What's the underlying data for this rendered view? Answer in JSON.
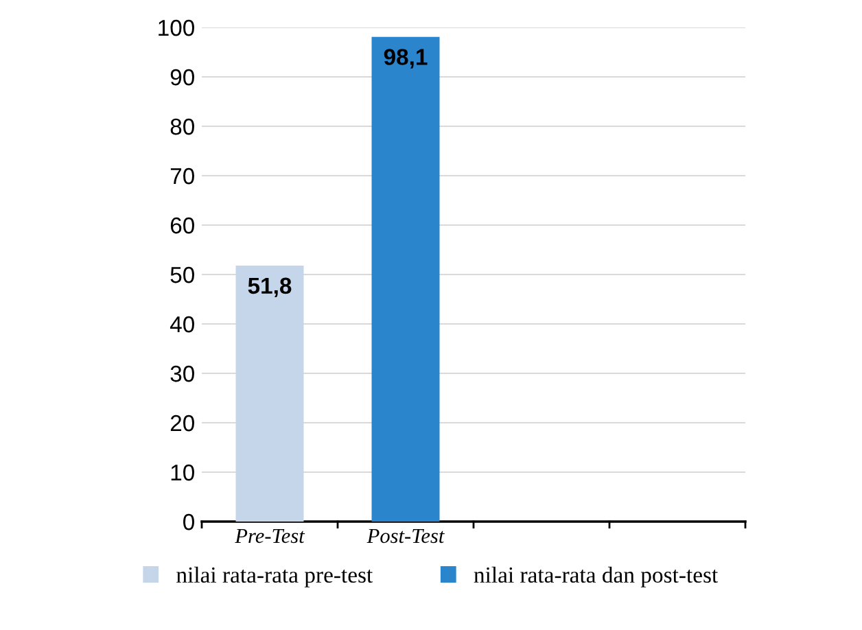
{
  "chart_data": {
    "type": "bar",
    "categories": [
      "Pre-Test",
      "Post-Test",
      null,
      null
    ],
    "series": [
      {
        "name": "nilai rata-rata pre-test",
        "color": "#c5d5ea",
        "values": [
          51.8,
          null,
          null,
          null
        ],
        "value_labels": [
          "51,8",
          null,
          null,
          null
        ]
      },
      {
        "name": "nilai rata-rata dan post-test",
        "color": "#2a85cc",
        "values": [
          null,
          98.1,
          null,
          null
        ],
        "value_labels": [
          null,
          "98,1",
          null,
          null
        ]
      }
    ],
    "ylim": [
      0,
      100
    ],
    "yticks": [
      0,
      10,
      20,
      30,
      40,
      50,
      60,
      70,
      80,
      90,
      100
    ],
    "grid": "y",
    "legend": "bottom"
  }
}
